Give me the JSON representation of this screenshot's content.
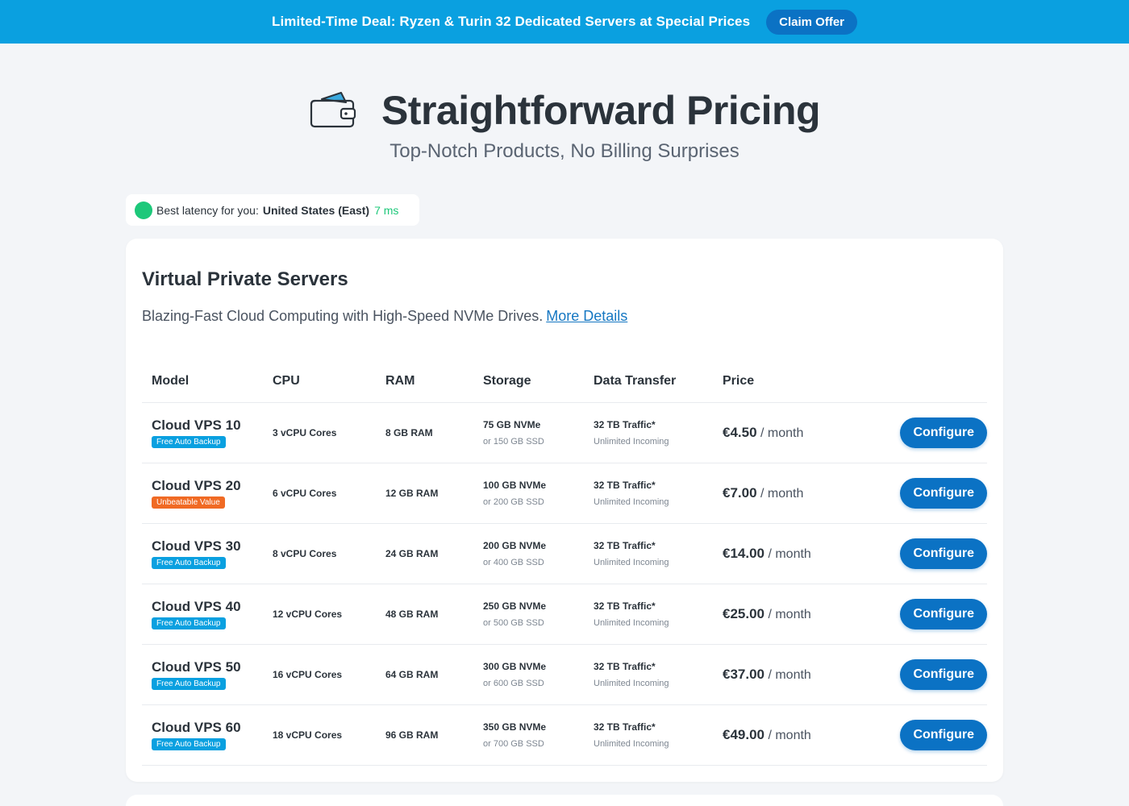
{
  "promo": {
    "text": "Limited-Time Deal: Ryzen & Turin 32 Dedicated Servers at Special Prices",
    "button": "Claim Offer"
  },
  "hero": {
    "icon": "wallet-icon",
    "title": "Straightforward Pricing",
    "subtitle": "Top-Notch Products, No Billing Surprises"
  },
  "latency": {
    "label": "Best latency for you:",
    "region": "United States (East)",
    "ms": "7 ms"
  },
  "vps": {
    "title": "Virtual Private Servers",
    "description": "Blazing-Fast Cloud Computing with High-Speed NVMe Drives.",
    "link": "More Details",
    "headers": {
      "model": "Model",
      "cpu": "CPU",
      "ram": "RAM",
      "storage": "Storage",
      "transfer": "Data Transfer",
      "price": "Price"
    },
    "rows": [
      {
        "model": "Cloud VPS 10",
        "badge": "Free Auto Backup",
        "badge_color": "#0aa0e0",
        "cpu": "3 vCPU Cores",
        "ram": "8 GB RAM",
        "storage": "75 GB NVMe",
        "storage_alt": "or 150 GB SSD",
        "transfer": "32 TB Traffic*",
        "transfer_sub": "Unlimited Incoming",
        "price": "€4.50",
        "period": "/ month",
        "button": "Configure"
      },
      {
        "model": "Cloud VPS 20",
        "badge": "Unbeatable Value",
        "badge_color": "#f06a24",
        "cpu": "6 vCPU Cores",
        "ram": "12 GB RAM",
        "storage": "100 GB NVMe",
        "storage_alt": "or 200 GB SSD",
        "transfer": "32 TB Traffic*",
        "transfer_sub": "Unlimited Incoming",
        "price": "€7.00",
        "period": "/ month",
        "button": "Configure"
      },
      {
        "model": "Cloud VPS 30",
        "badge": "Free Auto Backup",
        "badge_color": "#0aa0e0",
        "cpu": "8 vCPU Cores",
        "ram": "24 GB RAM",
        "storage": "200 GB NVMe",
        "storage_alt": "or 400 GB SSD",
        "transfer": "32 TB Traffic*",
        "transfer_sub": "Unlimited Incoming",
        "price": "€14.00",
        "period": "/ month",
        "button": "Configure"
      },
      {
        "model": "Cloud VPS 40",
        "badge": "Free Auto Backup",
        "badge_color": "#0aa0e0",
        "cpu": "12 vCPU Cores",
        "ram": "48 GB RAM",
        "storage": "250 GB NVMe",
        "storage_alt": "or 500 GB SSD",
        "transfer": "32 TB Traffic*",
        "transfer_sub": "Unlimited Incoming",
        "price": "€25.00",
        "period": "/ month",
        "button": "Configure"
      },
      {
        "model": "Cloud VPS 50",
        "badge": "Free Auto Backup",
        "badge_color": "#0aa0e0",
        "cpu": "16 vCPU Cores",
        "ram": "64 GB RAM",
        "storage": "300 GB NVMe",
        "storage_alt": "or 600 GB SSD",
        "transfer": "32 TB Traffic*",
        "transfer_sub": "Unlimited Incoming",
        "price": "€37.00",
        "period": "/ month",
        "button": "Configure"
      },
      {
        "model": "Cloud VPS 60",
        "badge": "Free Auto Backup",
        "badge_color": "#0aa0e0",
        "cpu": "18 vCPU Cores",
        "ram": "96 GB RAM",
        "storage": "350 GB NVMe",
        "storage_alt": "or 700 GB SSD",
        "transfer": "32 TB Traffic*",
        "transfer_sub": "Unlimited Incoming",
        "price": "€49.00",
        "period": "/ month",
        "button": "Configure"
      }
    ]
  },
  "colors": {
    "promo_bg": "#0aa0e0",
    "primary_button": "#0b72c4",
    "badge_blue": "#0aa0e0",
    "badge_orange": "#f06a24",
    "latency_green": "#1dc87a"
  }
}
